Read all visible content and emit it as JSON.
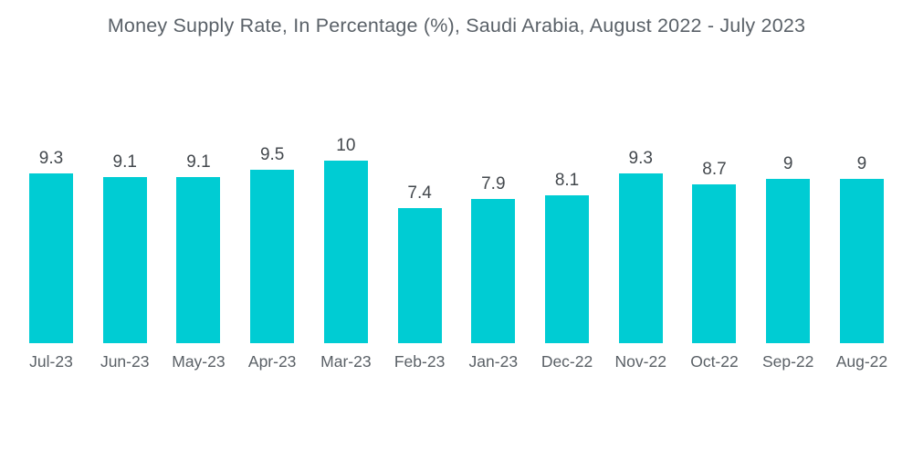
{
  "title": "Money Supply Rate, In Percentage (%), Saudi Arabia, August 2022 - July 2023",
  "chart_data": {
    "type": "bar",
    "title": "Money Supply Rate, In Percentage (%), Saudi Arabia, August 2022 - July 2023",
    "categories": [
      "Jul-23",
      "Jun-23",
      "May-23",
      "Apr-23",
      "Mar-23",
      "Feb-23",
      "Jan-23",
      "Dec-22",
      "Nov-22",
      "Oct-22",
      "Sep-22",
      "Aug-22"
    ],
    "values": [
      9.3,
      9.1,
      9.1,
      9.5,
      10,
      7.4,
      7.9,
      8.1,
      9.3,
      8.7,
      9,
      9
    ],
    "value_labels": [
      "9.3",
      "9.1",
      "9.1",
      "9.5",
      "10",
      "7.4",
      "7.9",
      "8.1",
      "9.3",
      "8.7",
      "9",
      "9"
    ],
    "xlabel": "",
    "ylabel": "",
    "ylim": [
      0,
      10
    ],
    "grid": false,
    "legend": false,
    "data_labels_position": "above-bars"
  },
  "colors": {
    "bar": "#00ccd3",
    "title_text": "#5a6168",
    "value_label_text": "#43484d",
    "month_label_text": "#5a6066",
    "background": "#ffffff"
  }
}
